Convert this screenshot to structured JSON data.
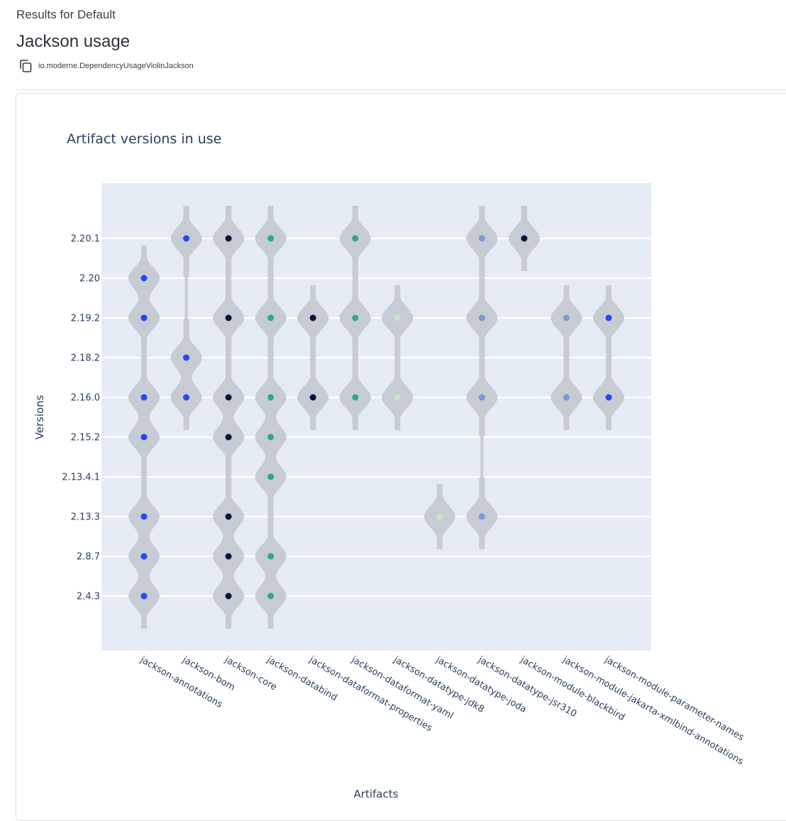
{
  "header": {
    "breadcrumb": "Results for Default",
    "title": "Jackson usage",
    "recipe_id": "io.moderne.DependencyUsageViolinJackson",
    "copy_icon": "copy-icon"
  },
  "colors": {
    "plot_bg": "#e5ecf6",
    "violin_fill": "#c4c9d2",
    "grid": "#ffffff",
    "text": "#2a3f5f"
  },
  "chart_data": {
    "type": "violin",
    "title": "Artifact versions in use",
    "xlabel": "Artifacts",
    "ylabel": "Versions",
    "y_categories": [
      "2.20.1",
      "2.20",
      "2.19.2",
      "2.18.2",
      "2.16.0",
      "2.15.2",
      "2.13.4.1",
      "2.13.3",
      "2.8.7",
      "2.4.3"
    ],
    "categories": [
      "jackson-annotations",
      "jackson-bom",
      "jackson-core",
      "jackson-databind",
      "jackson-dataformat-properties",
      "jackson-dataformat-yaml",
      "jackson-datatype-jdk8",
      "jackson-datatype-joda",
      "jackson-datatype-jsr310",
      "jackson-module-blackbird",
      "jackson-module-jakarta-xmlbind-annotations",
      "jackson-module-parameter-names"
    ],
    "series": [
      {
        "name": "jackson-annotations",
        "color": "#2547f5",
        "values": [
          "2.20",
          "2.19.2",
          "2.16.0",
          "2.15.2",
          "2.13.3",
          "2.8.7",
          "2.4.3"
        ]
      },
      {
        "name": "jackson-bom",
        "color": "#2547f5",
        "values": [
          "2.20.1",
          "2.18.2",
          "2.16.0"
        ]
      },
      {
        "name": "jackson-core",
        "color": "#061539",
        "values": [
          "2.20.1",
          "2.19.2",
          "2.16.0",
          "2.15.2",
          "2.13.3",
          "2.8.7",
          "2.4.3"
        ]
      },
      {
        "name": "jackson-databind",
        "color": "#2ea887",
        "values": [
          "2.20.1",
          "2.19.2",
          "2.16.0",
          "2.15.2",
          "2.13.4.1",
          "2.8.7",
          "2.4.3"
        ]
      },
      {
        "name": "jackson-dataformat-properties",
        "color": "#061539",
        "values": [
          "2.19.2",
          "2.16.0"
        ]
      },
      {
        "name": "jackson-dataformat-yaml",
        "color": "#2ea887",
        "values": [
          "2.20.1",
          "2.19.2",
          "2.16.0"
        ]
      },
      {
        "name": "jackson-datatype-jdk8",
        "color": "#c6e8c6",
        "values": [
          "2.19.2",
          "2.16.0"
        ]
      },
      {
        "name": "jackson-datatype-joda",
        "color": "#c6e8c6",
        "values": [
          "2.13.3"
        ]
      },
      {
        "name": "jackson-datatype-jsr310",
        "color": "#7b98d6",
        "values": [
          "2.20.1",
          "2.19.2",
          "2.16.0",
          "2.13.3"
        ]
      },
      {
        "name": "jackson-module-blackbird",
        "color": "#061539",
        "values": [
          "2.20.1"
        ]
      },
      {
        "name": "jackson-module-jakarta-xmlbind-annotations",
        "color": "#7b98d6",
        "values": [
          "2.19.2",
          "2.16.0"
        ]
      },
      {
        "name": "jackson-module-parameter-names",
        "color": "#2547f5",
        "values": [
          "2.19.2",
          "2.16.0"
        ]
      }
    ],
    "grid": true,
    "legend": "none"
  }
}
